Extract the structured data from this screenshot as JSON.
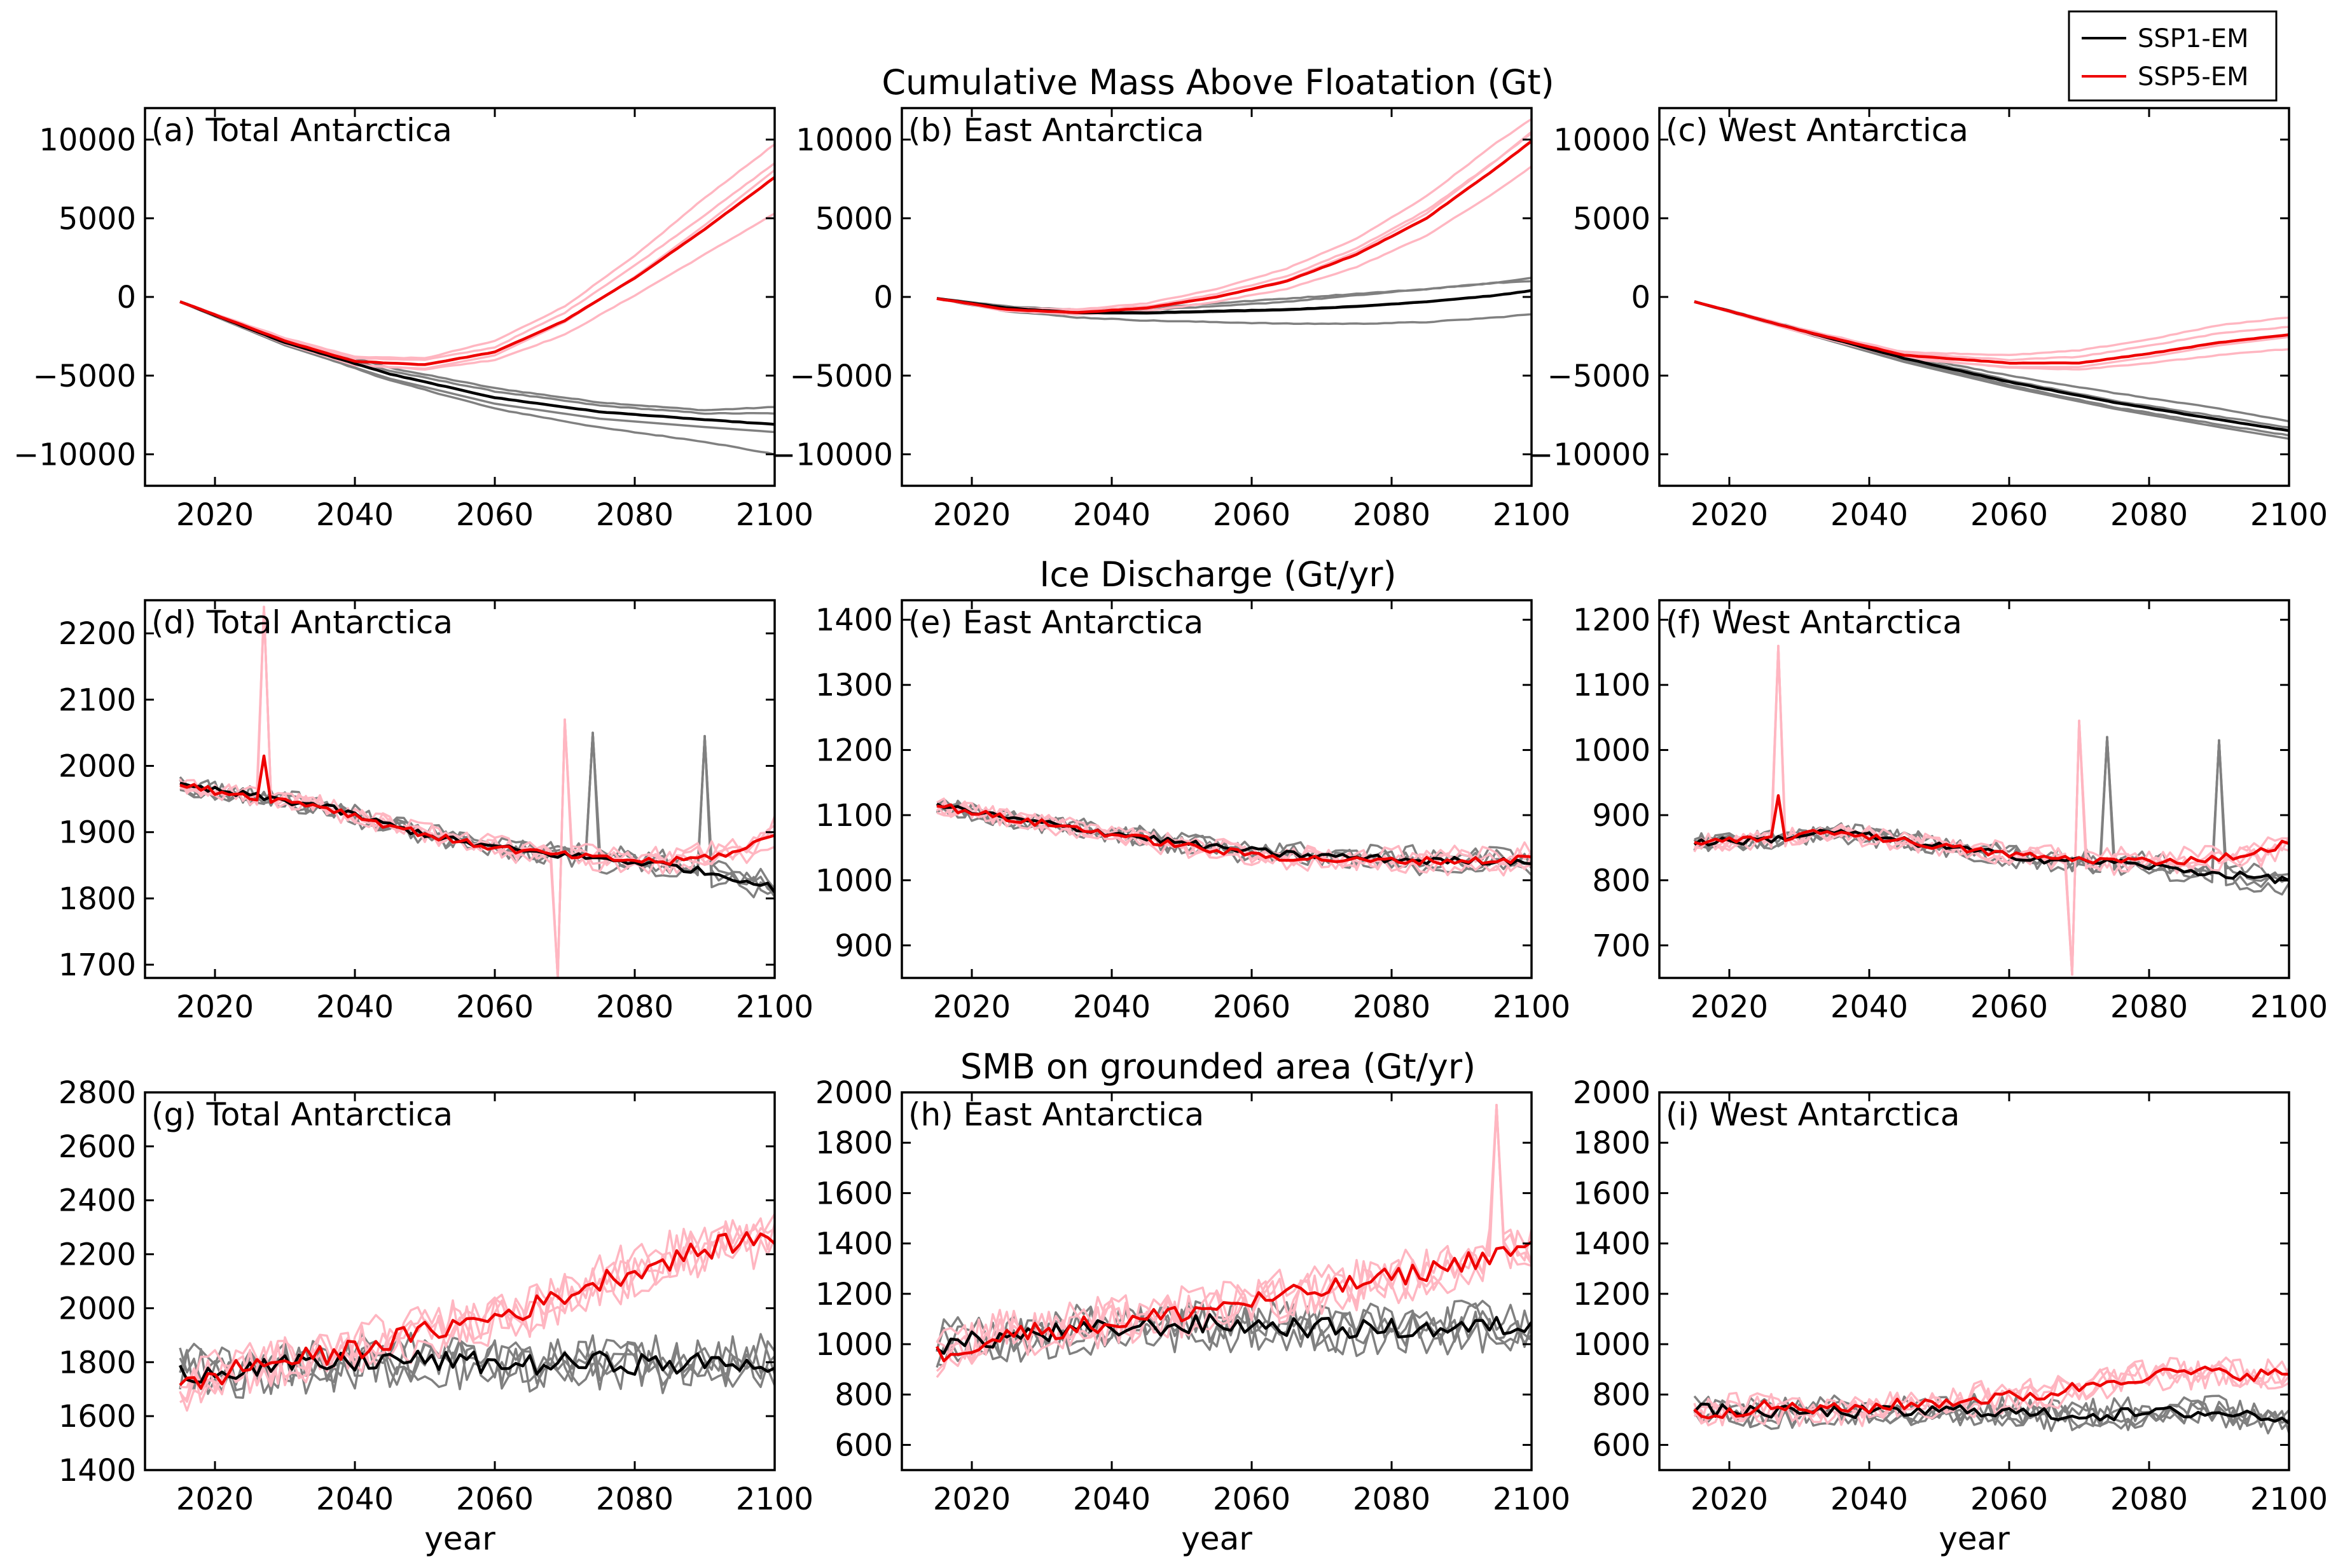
{
  "legend": {
    "entries": [
      {
        "label": "SSP1-EM",
        "color": "#000000"
      },
      {
        "label": "SSP5-EM",
        "color": "#ee0000"
      }
    ],
    "member_colors": {
      "SSP1-EM": "#808080",
      "SSP5-EM": "#ffb6c1"
    },
    "placement": "top-right"
  },
  "row_titles": [
    "Cumulative Mass Above Floatation (Gt)",
    "Ice Discharge (Gt/yr)",
    "SMB on grounded area (Gt/yr)"
  ],
  "xlabel": "year",
  "chart_data": [
    {
      "panel": "a",
      "type": "line",
      "label": "(a) Total Antarctica",
      "xlim": [
        2010,
        2100
      ],
      "xticks": [
        2020,
        2040,
        2060,
        2080,
        2100
      ],
      "ylim": [
        -12000,
        12000
      ],
      "yticks": [
        -10000,
        -5000,
        0,
        5000,
        10000
      ],
      "ytick_labels": [
        "−10000",
        "−5000",
        "0",
        "5000",
        "10000"
      ],
      "series": [
        {
          "name": "SSP1-EM",
          "x": [
            2015,
            2030,
            2045,
            2060,
            2075,
            2090,
            2100
          ],
          "y": [
            -300,
            -2900,
            -4900,
            -6400,
            -7300,
            -7800,
            -8100
          ]
        },
        {
          "name": "SSP5-EM",
          "x": [
            2015,
            2030,
            2040,
            2050,
            2060,
            2070,
            2080,
            2090,
            2100
          ],
          "y": [
            -300,
            -2800,
            -4100,
            -4300,
            -3500,
            -1500,
            1200,
            4300,
            7600
          ]
        }
      ],
      "members": {
        "SSP1-EM": [
          [
            -300,
            -2700,
            -4500,
            -5800,
            -6700,
            -7200,
            -7000
          ],
          [
            -300,
            -3000,
            -5300,
            -7100,
            -8300,
            -9200,
            -10000
          ],
          [
            -300,
            -2800,
            -4700,
            -6000,
            -6900,
            -7400,
            -7400
          ]
        ],
        "SSP5-EM": [
          [
            -300,
            -2600,
            -3800,
            -3900,
            -2800,
            -600,
            2600,
            6300,
            9700
          ],
          [
            -300,
            -2900,
            -4300,
            -4600,
            -4000,
            -2400,
            100,
            2700,
            5300
          ],
          [
            -300,
            -2700,
            -3900,
            -4000,
            -3200,
            -1000,
            2000,
            5200,
            8500
          ]
        ]
      }
    },
    {
      "panel": "b",
      "type": "line",
      "label": "(b) East Antarctica",
      "xlim": [
        2010,
        2100
      ],
      "xticks": [
        2020,
        2040,
        2060,
        2080,
        2100
      ],
      "ylim": [
        -12000,
        12000
      ],
      "yticks": [
        -10000,
        -5000,
        0,
        5000,
        10000
      ],
      "ytick_labels": [
        "−10000",
        "−5000",
        "0",
        "5000",
        "10000"
      ],
      "series": [
        {
          "name": "SSP1-EM",
          "x": [
            2015,
            2025,
            2035,
            2045,
            2055,
            2065,
            2075,
            2085,
            2095,
            2100
          ],
          "y": [
            -100,
            -700,
            -1000,
            -1000,
            -900,
            -800,
            -600,
            -300,
            100,
            400
          ]
        },
        {
          "name": "SSP5-EM",
          "x": [
            2015,
            2025,
            2035,
            2045,
            2055,
            2065,
            2075,
            2085,
            2095,
            2100
          ],
          "y": [
            -100,
            -800,
            -1000,
            -700,
            0,
            1000,
            2700,
            5000,
            8200,
            9900
          ]
        }
      ],
      "members": {
        "SSP1-EM": [
          [
            -100,
            -600,
            -800,
            -700,
            -400,
            -100,
            200,
            500,
            900,
            1200
          ],
          [
            -100,
            -900,
            -1300,
            -1500,
            -1600,
            -1700,
            -1700,
            -1600,
            -1300,
            -1100
          ],
          [
            -100,
            -700,
            -900,
            -800,
            -600,
            -300,
            100,
            500,
            900,
            1000
          ]
        ],
        "SSP5-EM": [
          [
            -100,
            -700,
            -800,
            -400,
            500,
            1800,
            3700,
            6400,
            9800,
            11300
          ],
          [
            -100,
            -900,
            -1100,
            -900,
            -300,
            500,
            1900,
            3900,
            6700,
            8300
          ],
          [
            -100,
            -800,
            -900,
            -600,
            200,
            1300,
            3100,
            5500,
            8700,
            10400
          ]
        ]
      }
    },
    {
      "panel": "c",
      "type": "line",
      "label": "(c) West Antarctica",
      "xlim": [
        2010,
        2100
      ],
      "xticks": [
        2020,
        2040,
        2060,
        2080,
        2100
      ],
      "ylim": [
        -12000,
        12000
      ],
      "yticks": [
        -10000,
        -5000,
        0,
        5000,
        10000
      ],
      "ytick_labels": [
        "−10000",
        "−5000",
        "0",
        "5000",
        "10000"
      ],
      "series": [
        {
          "name": "SSP1-EM",
          "x": [
            2015,
            2030,
            2045,
            2060,
            2075,
            2090,
            2100
          ],
          "y": [
            -300,
            -2100,
            -3900,
            -5400,
            -6700,
            -7800,
            -8500
          ]
        },
        {
          "name": "SSP5-EM",
          "x": [
            2015,
            2030,
            2045,
            2060,
            2070,
            2080,
            2090,
            2100
          ],
          "y": [
            -300,
            -2100,
            -3700,
            -4200,
            -4200,
            -3600,
            -2900,
            -2400
          ]
        }
      ],
      "members": {
        "SSP1-EM": [
          [
            -300,
            -2000,
            -3700,
            -5000,
            -6100,
            -7100,
            -7900
          ],
          [
            -300,
            -2200,
            -4000,
            -5600,
            -7000,
            -8100,
            -8800
          ],
          [
            -300,
            -2100,
            -3800,
            -5300,
            -6600,
            -7600,
            -8300
          ]
        ],
        "SSP5-EM": [
          [
            -300,
            -2000,
            -3500,
            -3700,
            -3400,
            -2700,
            -1800,
            -1300
          ],
          [
            -300,
            -2200,
            -3800,
            -4500,
            -4600,
            -4200,
            -3700,
            -3300
          ],
          [
            -300,
            -2100,
            -3600,
            -4000,
            -3800,
            -3100,
            -2300,
            -1900
          ]
        ]
      }
    },
    {
      "panel": "d",
      "type": "line",
      "label": "(d) Total Antarctica",
      "xlim": [
        2010,
        2100
      ],
      "xticks": [
        2020,
        2040,
        2060,
        2080,
        2100
      ],
      "ylim": [
        1680,
        2250
      ],
      "yticks": [
        1700,
        1800,
        1900,
        2000,
        2100,
        2200
      ],
      "ytick_labels": [
        "1700",
        "1800",
        "1900",
        "2000",
        "2100",
        "2200"
      ],
      "series": [
        {
          "name": "SSP1-EM",
          "x": [
            2015,
            2025,
            2035,
            2045,
            2055,
            2065,
            2075,
            2085,
            2095,
            2100
          ],
          "y": [
            1970,
            1955,
            1940,
            1910,
            1885,
            1870,
            1860,
            1850,
            1830,
            1815
          ]
        },
        {
          "name": "SSP5-EM",
          "x": [
            2015,
            2025,
            2035,
            2045,
            2055,
            2065,
            2075,
            2085,
            2095,
            2100
          ],
          "y": [
            1970,
            1955,
            1940,
            1910,
            1885,
            1870,
            1860,
            1855,
            1870,
            1900
          ]
        }
      ],
      "spikes": {
        "SSP5-EM": [
          [
            2027,
            2240,
            "member"
          ],
          [
            2027,
            2015,
            "mean"
          ],
          [
            2070,
            2070,
            "member"
          ],
          [
            2069,
            1680,
            "member"
          ]
        ],
        "SSP1-EM": [
          [
            2074,
            2050,
            "member"
          ],
          [
            2090,
            2045,
            "member"
          ]
        ]
      }
    },
    {
      "panel": "e",
      "type": "line",
      "label": "(e) East Antarctica",
      "xlim": [
        2010,
        2100
      ],
      "xticks": [
        2020,
        2040,
        2060,
        2080,
        2100
      ],
      "ylim": [
        850,
        1430
      ],
      "yticks": [
        900,
        1000,
        1100,
        1200,
        1300,
        1400
      ],
      "ytick_labels": [
        "900",
        "1000",
        "1100",
        "1200",
        "1300",
        "1400"
      ],
      "series": [
        {
          "name": "SSP1-EM",
          "x": [
            2015,
            2025,
            2035,
            2045,
            2055,
            2065,
            2075,
            2085,
            2095,
            2100
          ],
          "y": [
            1115,
            1095,
            1080,
            1065,
            1050,
            1040,
            1035,
            1030,
            1030,
            1030
          ]
        },
        {
          "name": "SSP5-EM",
          "x": [
            2015,
            2025,
            2035,
            2045,
            2055,
            2065,
            2075,
            2085,
            2095,
            2100
          ],
          "y": [
            1115,
            1095,
            1080,
            1062,
            1045,
            1035,
            1030,
            1030,
            1030,
            1035
          ]
        }
      ]
    },
    {
      "panel": "f",
      "type": "line",
      "label": "(f) West Antarctica",
      "xlim": [
        2010,
        2100
      ],
      "xticks": [
        2020,
        2040,
        2060,
        2080,
        2100
      ],
      "ylim": [
        650,
        1230
      ],
      "yticks": [
        700,
        800,
        900,
        1000,
        1100,
        1200
      ],
      "ytick_labels": [
        "700",
        "800",
        "900",
        "1000",
        "1100",
        "1200"
      ],
      "series": [
        {
          "name": "SSP1-EM",
          "x": [
            2015,
            2025,
            2035,
            2045,
            2055,
            2065,
            2075,
            2085,
            2095,
            2100
          ],
          "y": [
            858,
            862,
            875,
            860,
            845,
            832,
            828,
            815,
            805,
            800
          ]
        },
        {
          "name": "SSP5-EM",
          "x": [
            2015,
            2025,
            2035,
            2045,
            2055,
            2065,
            2075,
            2085,
            2095,
            2100
          ],
          "y": [
            858,
            862,
            875,
            860,
            845,
            835,
            830,
            830,
            840,
            860
          ]
        }
      ],
      "spikes": {
        "SSP5-EM": [
          [
            2027,
            1160,
            "member"
          ],
          [
            2027,
            930,
            "mean"
          ],
          [
            2070,
            1045,
            "member"
          ],
          [
            2069,
            655,
            "member"
          ]
        ],
        "SSP1-EM": [
          [
            2074,
            1020,
            "member"
          ],
          [
            2090,
            1015,
            "member"
          ]
        ]
      }
    },
    {
      "panel": "g",
      "type": "line",
      "label": "(g) Total Antarctica",
      "xlim": [
        2010,
        2100
      ],
      "xticks": [
        2020,
        2040,
        2060,
        2080,
        2100
      ],
      "ylim": [
        1400,
        2800
      ],
      "yticks": [
        1400,
        1600,
        1800,
        2000,
        2200,
        2400,
        2600,
        2800
      ],
      "ytick_labels": [
        "1400",
        "1600",
        "1800",
        "2000",
        "2200",
        "2400",
        "2600",
        "2800"
      ],
      "series": [
        {
          "name": "SSP1-EM",
          "x": [
            2015,
            2025,
            2035,
            2045,
            2055,
            2065,
            2075,
            2085,
            2095,
            2100
          ],
          "y": [
            1760,
            1780,
            1790,
            1810,
            1800,
            1790,
            1800,
            1790,
            1800,
            1790
          ]
        },
        {
          "name": "SSP5-EM",
          "x": [
            2015,
            2025,
            2035,
            2045,
            2055,
            2065,
            2075,
            2085,
            2095,
            2100
          ],
          "y": [
            1700,
            1790,
            1820,
            1880,
            1940,
            2000,
            2100,
            2180,
            2250,
            2260
          ]
        }
      ],
      "noise": {
        "mean": 40,
        "member": 90
      }
    },
    {
      "panel": "h",
      "type": "line",
      "label": "(h) East Antarctica",
      "xlim": [
        2010,
        2100
      ],
      "xticks": [
        2020,
        2040,
        2060,
        2080,
        2100
      ],
      "ylim": [
        500,
        2000
      ],
      "yticks": [
        600,
        800,
        1000,
        1200,
        1400,
        1600,
        1800,
        2000
      ],
      "ytick_labels": [
        "600",
        "800",
        "1000",
        "1200",
        "1400",
        "1600",
        "1800",
        "2000"
      ],
      "series": [
        {
          "name": "SSP1-EM",
          "x": [
            2015,
            2025,
            2035,
            2045,
            2055,
            2065,
            2075,
            2085,
            2095,
            2100
          ],
          "y": [
            990,
            1030,
            1050,
            1070,
            1080,
            1070,
            1060,
            1060,
            1070,
            1070
          ]
        },
        {
          "name": "SSP5-EM",
          "x": [
            2015,
            2025,
            2035,
            2045,
            2055,
            2065,
            2075,
            2085,
            2095,
            2100
          ],
          "y": [
            960,
            1040,
            1070,
            1100,
            1150,
            1190,
            1240,
            1290,
            1360,
            1380
          ]
        }
      ],
      "noise": {
        "mean": 40,
        "member": 90
      },
      "spikes": {
        "SSP5-EM": [
          [
            2095,
            1950,
            "member"
          ]
        ]
      }
    },
    {
      "panel": "i",
      "type": "line",
      "label": "(i) West Antarctica",
      "xlim": [
        2010,
        2100
      ],
      "xticks": [
        2020,
        2040,
        2060,
        2080,
        2100
      ],
      "ylim": [
        500,
        2000
      ],
      "yticks": [
        600,
        800,
        1000,
        1200,
        1400,
        1600,
        1800,
        2000
      ],
      "ytick_labels": [
        "600",
        "800",
        "1000",
        "1200",
        "1400",
        "1600",
        "1800",
        "2000"
      ],
      "series": [
        {
          "name": "SSP1-EM",
          "x": [
            2015,
            2025,
            2035,
            2045,
            2055,
            2065,
            2075,
            2085,
            2095,
            2100
          ],
          "y": [
            740,
            730,
            730,
            730,
            740,
            720,
            720,
            730,
            720,
            700
          ]
        },
        {
          "name": "SSP5-EM",
          "x": [
            2015,
            2025,
            2035,
            2045,
            2055,
            2065,
            2075,
            2085,
            2095,
            2100
          ],
          "y": [
            720,
            750,
            740,
            760,
            780,
            800,
            860,
            890,
            880,
            880
          ]
        }
      ],
      "noise": {
        "mean": 25,
        "member": 60
      }
    }
  ]
}
